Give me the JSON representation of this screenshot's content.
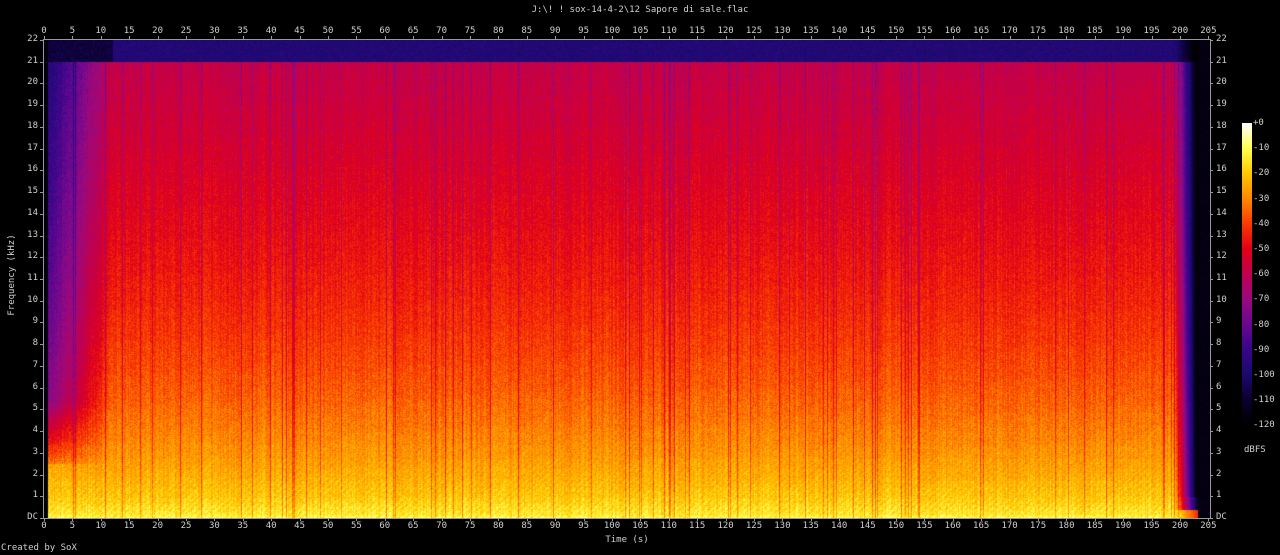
{
  "title": "J:\\! ! sox-14-4-2\\12 Sapore di sale.flac",
  "credit": "Created by SoX",
  "chart_data": {
    "type": "heatmap",
    "title": "J:\\! ! sox-14-4-2\\12 Sapore di sale.flac",
    "xlabel": "Time (s)",
    "ylabel": "Frequency (kHz)",
    "xlim": [
      0,
      205
    ],
    "ylim": [
      0,
      22
    ],
    "x_ticks": [
      "0",
      "5",
      "10",
      "15",
      "20",
      "25",
      "30",
      "35",
      "40",
      "45",
      "50",
      "55",
      "60",
      "65",
      "70",
      "75",
      "80",
      "85",
      "90",
      "95",
      "100",
      "105",
      "110",
      "115",
      "120",
      "125",
      "130",
      "135",
      "140",
      "145",
      "150",
      "155",
      "160",
      "165",
      "170",
      "175",
      "180",
      "185",
      "190",
      "195",
      "200",
      "205"
    ],
    "y_ticks": [
      "DC",
      "1",
      "2",
      "3",
      "4",
      "5",
      "6",
      "7",
      "8",
      "9",
      "10",
      "11",
      "12",
      "13",
      "14",
      "15",
      "16",
      "17",
      "18",
      "19",
      "20",
      "21",
      "22"
    ],
    "colorbar": {
      "label": "dBFS",
      "range": [
        -120,
        0
      ],
      "ticks": [
        "+0",
        "-10",
        "-20",
        "-30",
        "-40",
        "-50",
        "-60",
        "-70",
        "-80",
        "-90",
        "-100",
        "-110",
        "-120"
      ],
      "colormap": [
        "#000000",
        "#0c0030",
        "#1c0a70",
        "#38068a",
        "#6a0890",
        "#9a0a80",
        "#c00050",
        "#e20018",
        "#fa3a00",
        "#ff8a00",
        "#ffc800",
        "#ffff50",
        "#ffffff"
      ]
    },
    "content": {
      "audio_start_s": 0.5,
      "audio_end_s": 203,
      "lowpass_cutoff_khz": 21
    }
  }
}
